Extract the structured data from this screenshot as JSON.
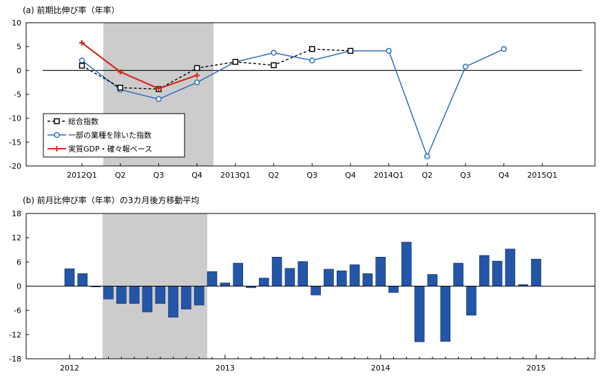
{
  "chart_data": [
    {
      "type": "line",
      "title": "(a) 前期比伸び率（年率）",
      "ylim": [
        -20,
        10
      ],
      "yticks": [
        10,
        5,
        0,
        -5,
        -10,
        -15,
        -20
      ],
      "ytick_labels": [
        "10",
        "5",
        "0",
        "-5",
        "-10",
        "-15",
        "-20"
      ],
      "categories": [
        "2012Q1",
        "Q2",
        "Q3",
        "Q4",
        "2013Q1",
        "Q2",
        "Q3",
        "Q4",
        "2014Q1",
        "Q2",
        "Q3",
        "Q4",
        "2015Q1"
      ],
      "shaded_region": {
        "from": "Q2",
        "to": "Q4",
        "year": "2012",
        "color": "#cccccc"
      },
      "legend_position": "lower-left",
      "series": [
        {
          "name": "総合指数",
          "color": "#000000",
          "style": "dashed",
          "marker": "square",
          "values": [
            1.0,
            -3.6,
            -3.9,
            0.5,
            1.8,
            1.1,
            4.5,
            4.1,
            null,
            null,
            null,
            null,
            null
          ]
        },
        {
          "name": "一部の業種を除いた指数",
          "color": "#2a6ebb",
          "style": "solid",
          "marker": "circle",
          "values": [
            2.1,
            -4.0,
            -6.0,
            -2.5,
            1.8,
            3.7,
            2.1,
            4.1,
            4.1,
            -18.0,
            0.8,
            4.5,
            null
          ]
        },
        {
          "name": "実質GDP・確々報ベース",
          "color": "#d42a1e",
          "style": "solid",
          "marker": "plus",
          "values": [
            5.8,
            -0.3,
            -3.8,
            -1.0,
            null,
            null,
            null,
            null,
            null,
            null,
            null,
            null,
            null
          ]
        }
      ]
    },
    {
      "type": "bar",
      "title": "(b) 前月比伸び率（年率）の3カ月後方移動平均",
      "ylim": [
        -18,
        18
      ],
      "yticks": [
        18,
        12,
        6,
        0,
        -6,
        -12,
        -18
      ],
      "ytick_labels": [
        "18",
        "12",
        "6",
        "0",
        "-6",
        "-12",
        "-18"
      ],
      "x_labels": [
        "2012",
        "2013",
        "2014",
        "2015"
      ],
      "x_label_month_index": [
        0,
        12,
        24,
        36
      ],
      "x_start": "2012-01",
      "shaded_region": {
        "from": "2012-04",
        "to": "2012-11",
        "color": "#cccccc"
      },
      "bar_color": "#2356a8",
      "values": [
        4.3,
        3.1,
        -0.2,
        -3.2,
        -4.3,
        -4.3,
        -6.4,
        -4.3,
        -7.7,
        -5.7,
        -4.7,
        3.6,
        0.8,
        5.7,
        -0.4,
        2.0,
        7.2,
        4.4,
        6.1,
        -2.2,
        4.2,
        3.8,
        5.3,
        3.1,
        7.2,
        -1.6,
        10.9,
        -13.8,
        2.9,
        -13.7,
        5.7,
        -7.2,
        7.6,
        6.2,
        9.2,
        0.4,
        6.7
      ]
    }
  ]
}
